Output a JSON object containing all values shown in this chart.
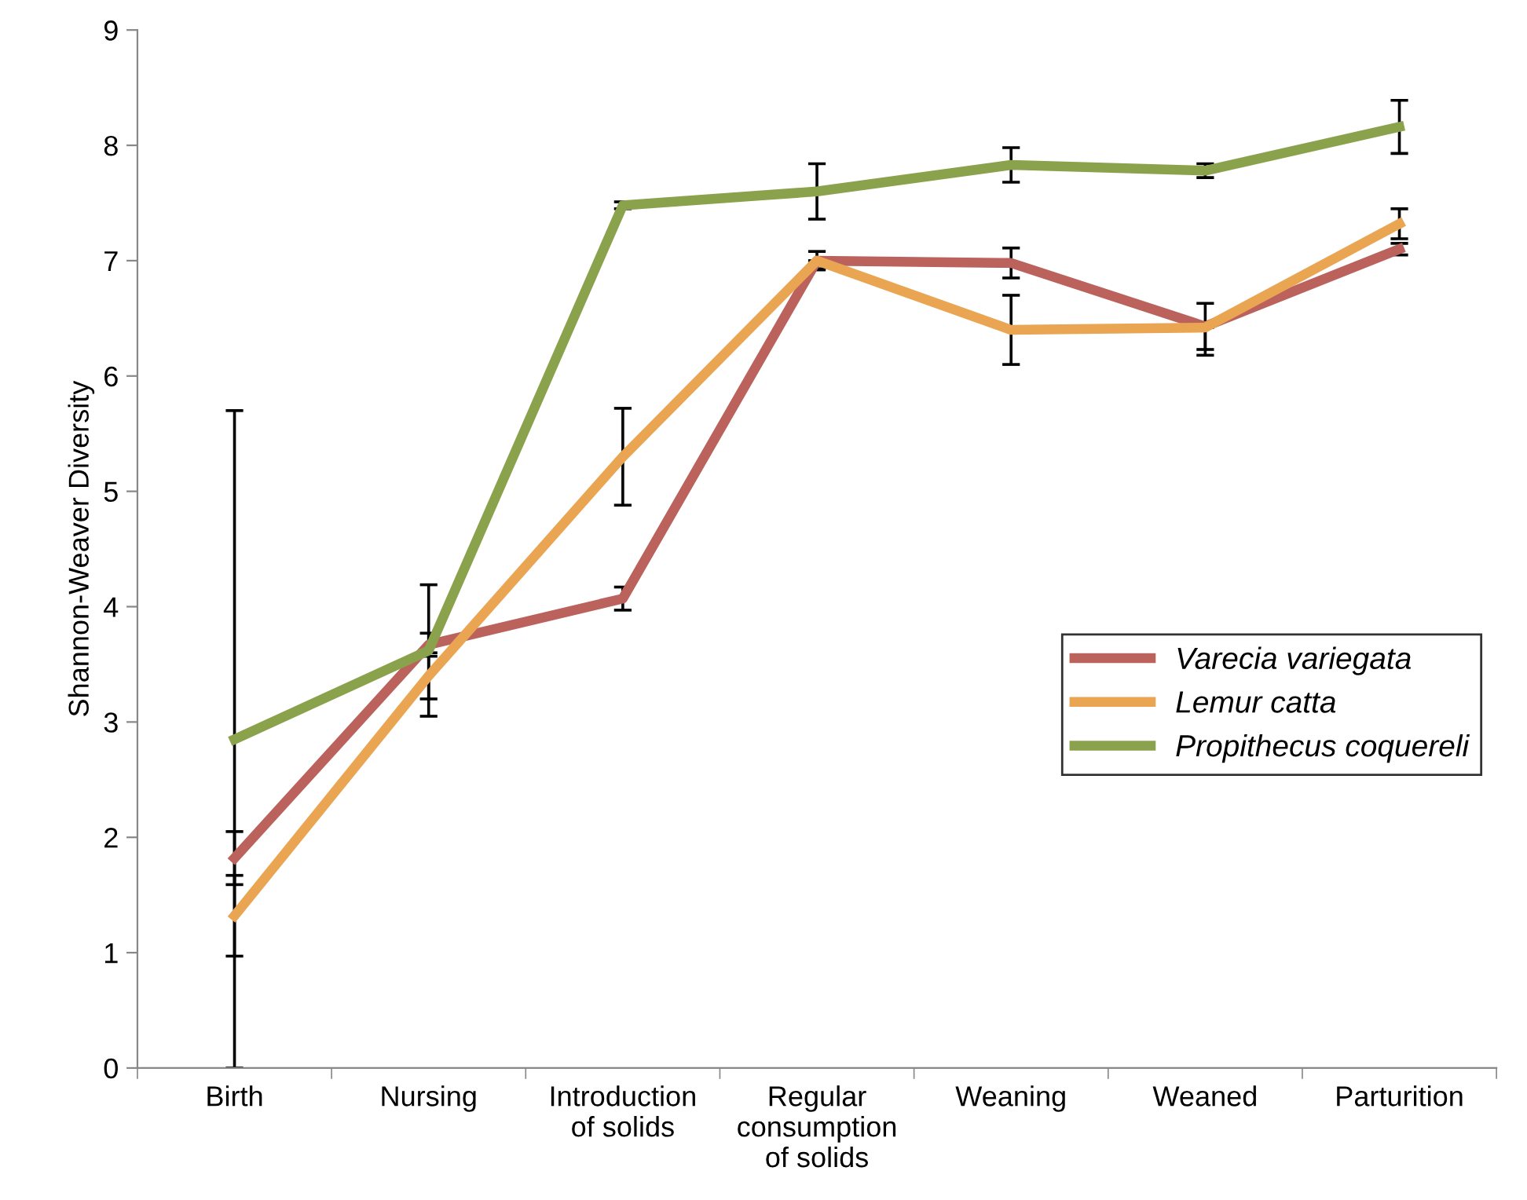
{
  "chart_data": {
    "type": "line",
    "ylabel": "Shannon-Weaver Diversity",
    "categories": [
      "Birth",
      "Nursing",
      "Introduction\nof solids",
      "Regular\nconsumption\nof solids",
      "Weaning",
      "Weaned",
      "Parturition"
    ],
    "ylim": [
      0,
      9
    ],
    "yticks": [
      0,
      1,
      2,
      3,
      4,
      5,
      6,
      7,
      8,
      9
    ],
    "grid": false,
    "legend": "right",
    "marker": "none",
    "line_style": "solid",
    "series": [
      {
        "name": "Varecia variegata",
        "color": "#bb625c",
        "values": [
          1.82,
          3.67,
          4.07,
          7.0,
          6.98,
          6.43,
          7.1
        ],
        "errors": [
          0.23,
          0.1,
          0.1,
          0.08,
          0.13,
          0.2,
          0.05
        ]
      },
      {
        "name": "Lemur catta",
        "color": "#e9a552",
        "values": [
          1.32,
          3.4,
          5.3,
          7.0,
          6.4,
          6.42,
          7.32
        ],
        "errors": [
          0.35,
          0.2,
          0.42,
          [
            6.93,
            7.0
          ],
          0.3,
          [
            6.18,
            6.42
          ],
          0.13
        ]
      },
      {
        "name": "Propithecus coquereli",
        "color": "#8ba24c",
        "values": [
          2.85,
          3.62,
          7.48,
          7.6,
          7.83,
          7.78,
          8.16
        ],
        "errors": [
          2.85,
          0.57,
          0.03,
          0.24,
          0.15,
          0.06,
          0.23
        ]
      }
    ]
  }
}
